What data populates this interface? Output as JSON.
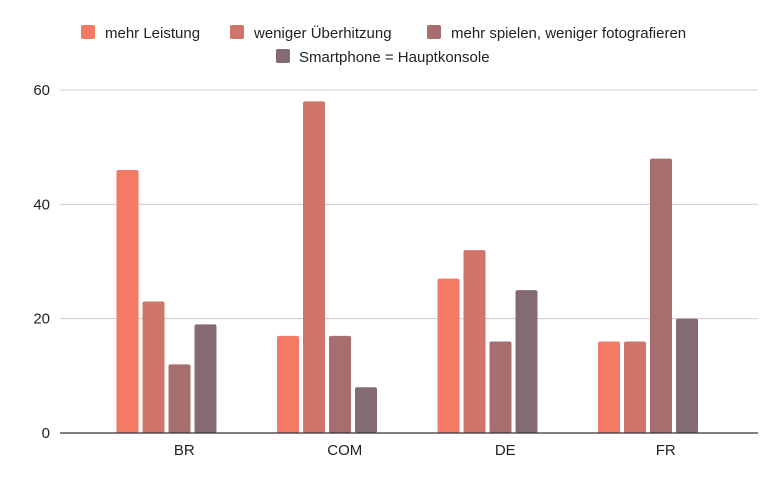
{
  "chart_data": {
    "type": "bar",
    "categories": [
      "BR",
      "COM",
      "DE",
      "FR"
    ],
    "series": [
      {
        "name": "mehr Leistung",
        "color": "#f47a65",
        "values": [
          46,
          17,
          27,
          16
        ]
      },
      {
        "name": "weniger Überhitzung",
        "color": "#cf7569",
        "values": [
          23,
          58,
          32,
          16
        ]
      },
      {
        "name": "mehr spielen, weniger fotografieren",
        "color": "#a86d6d",
        "values": [
          12,
          17,
          16,
          48
        ]
      },
      {
        "name": "Smartphone = Hauptkonsole",
        "color": "#846b72",
        "values": [
          19,
          8,
          25,
          20
        ]
      }
    ],
    "yticks": [
      0,
      20,
      40,
      60
    ],
    "ylim": [
      0,
      60
    ],
    "grid": true,
    "legend_position": "top-center"
  }
}
